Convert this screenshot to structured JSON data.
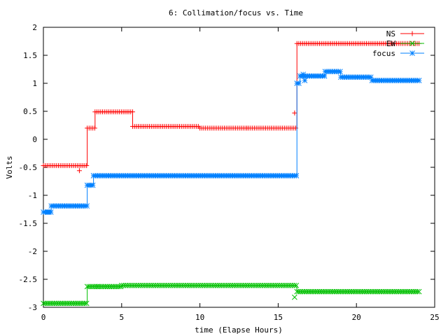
{
  "chart_data": {
    "type": "line",
    "title": "6: Collimation/focus vs. Time",
    "xlabel": "time (Elapse Hours)",
    "ylabel": "Volts",
    "xlim": [
      0,
      25
    ],
    "ylim": [
      -3,
      2
    ],
    "xticks": [
      0,
      5,
      10,
      15,
      20,
      25
    ],
    "yticks": [
      -3,
      -2.5,
      -2,
      -1.5,
      -1,
      -0.5,
      0,
      0.5,
      1,
      1.5,
      2
    ],
    "grid": false,
    "legend_position": "top-right",
    "series": [
      {
        "name": "NS",
        "color": "#ff0000",
        "marker": "plus",
        "segments": [
          {
            "x0": 0.0,
            "x1": 2.8,
            "y": -0.47
          },
          {
            "x0": 2.8,
            "x1": 3.3,
            "y": 0.2
          },
          {
            "x0": 3.3,
            "x1": 5.7,
            "y": 0.49
          },
          {
            "x0": 5.7,
            "x1": 10.0,
            "y": 0.23
          },
          {
            "x0": 10.0,
            "x1": 13.0,
            "y": 0.2
          },
          {
            "x0": 13.0,
            "x1": 16.2,
            "y": 0.2
          },
          {
            "x0": 16.2,
            "x1": 24.0,
            "y": 1.71
          }
        ],
        "outliers": [
          {
            "x": 2.3,
            "y": -0.56
          },
          {
            "x": 16.05,
            "y": 0.47
          }
        ]
      },
      {
        "name": "EW",
        "color": "#00c000",
        "marker": "cross",
        "segments": [
          {
            "x0": 0.0,
            "x1": 2.8,
            "y": -2.93
          },
          {
            "x0": 2.8,
            "x1": 3.5,
            "y": -2.63
          },
          {
            "x0": 3.5,
            "x1": 5.0,
            "y": -2.63
          },
          {
            "x0": 5.0,
            "x1": 16.2,
            "y": -2.61
          },
          {
            "x0": 16.2,
            "x1": 24.0,
            "y": -2.72
          }
        ],
        "outliers": [
          {
            "x": 16.05,
            "y": -2.82
          }
        ]
      },
      {
        "name": "focus",
        "color": "#0080ff",
        "marker": "star",
        "segments": [
          {
            "x0": 0.0,
            "x1": 0.5,
            "y": -1.3
          },
          {
            "x0": 0.5,
            "x1": 2.8,
            "y": -1.19
          },
          {
            "x0": 2.8,
            "x1": 3.2,
            "y": -0.82
          },
          {
            "x0": 3.2,
            "x1": 16.2,
            "y": -0.65
          },
          {
            "x0": 16.2,
            "x1": 16.4,
            "y": 1.0
          },
          {
            "x0": 16.4,
            "x1": 18.0,
            "y": 1.13
          },
          {
            "x0": 18.0,
            "x1": 19.0,
            "y": 1.21
          },
          {
            "x0": 19.0,
            "x1": 21.0,
            "y": 1.11
          },
          {
            "x0": 21.0,
            "x1": 24.0,
            "y": 1.05
          }
        ],
        "outliers": [
          {
            "x": 0.3,
            "y": -1.3
          },
          {
            "x": 16.6,
            "y": 1.16
          },
          {
            "x": 16.7,
            "y": 1.05
          }
        ]
      }
    ]
  }
}
